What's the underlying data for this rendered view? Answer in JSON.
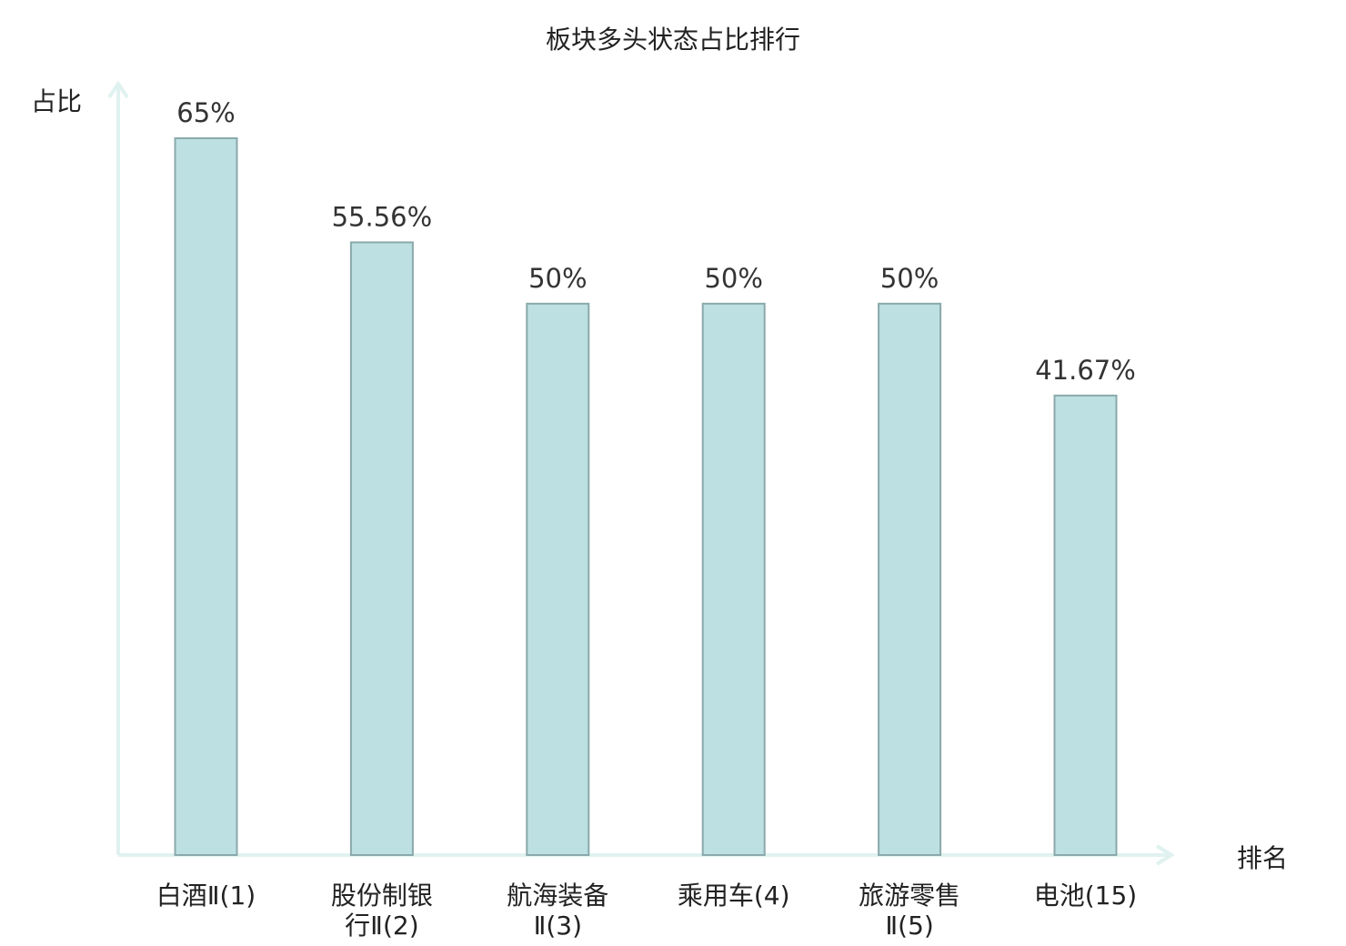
{
  "chart_data": {
    "type": "bar",
    "title": "板块多头状态占比排行",
    "xlabel": "排名",
    "ylabel": "占比",
    "categories": [
      [
        "白酒Ⅱ(1)"
      ],
      [
        "股份制银",
        "行Ⅱ(2)"
      ],
      [
        "航海装备",
        "Ⅱ(3)"
      ],
      [
        "乘用车(4)"
      ],
      [
        "旅游零售",
        "Ⅱ(5)"
      ],
      [
        "电池(15)"
      ]
    ],
    "values": [
      65,
      55.56,
      50,
      50,
      50,
      41.67
    ],
    "value_labels": [
      "65%",
      "55.56%",
      "50%",
      "50%",
      "50%",
      "41.67%"
    ],
    "highlight_index": 5,
    "ylim": [
      0,
      65
    ],
    "grid": false,
    "colors": {
      "bar_fill": "#bde0e3",
      "bar_stroke": "#8aa9ab",
      "axis": "#e0f2ef",
      "highlight_text": "#e8131a"
    }
  }
}
